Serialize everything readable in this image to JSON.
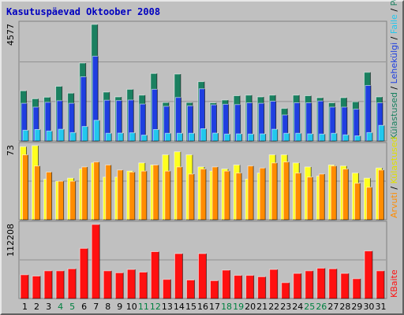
{
  "chart_data": {
    "type": "bar",
    "title": "Kasutuspäevad Oktoober 2008",
    "days": [
      "1",
      "2",
      "3",
      "4",
      "5",
      "6",
      "7",
      "8",
      "9",
      "10",
      "11",
      "12",
      "13",
      "14",
      "15",
      "16",
      "17",
      "18",
      "19",
      "20",
      "21",
      "22",
      "23",
      "24",
      "25",
      "26",
      "27",
      "28",
      "29",
      "30",
      "31"
    ],
    "weekend_days": [
      "4",
      "5",
      "11",
      "12",
      "18",
      "19",
      "25",
      "26"
    ],
    "panels": [
      {
        "id": "top",
        "ymax_label": "4577",
        "ylim": [
          0,
          4577
        ],
        "series": [
          {
            "name": "Külastused",
            "color": "#1a8060",
            "values": [
              1970,
              1660,
              1720,
              2150,
              1880,
              3060,
              4577,
              1920,
              1730,
              2030,
              1800,
              2650,
              1510,
              2630,
              1510,
              2330,
              1500,
              1610,
              1780,
              1800,
              1730,
              1800,
              1280,
              1800,
              1780,
              1700,
              1500,
              1700,
              1540,
              2700,
              1730
            ]
          },
          {
            "name": "Lehekülgi",
            "color": "#1f3fe0",
            "values": [
              1480,
              1330,
              1520,
              1580,
              1480,
              2520,
              3330,
              1600,
              1590,
              1610,
              1450,
              2030,
              1360,
              1710,
              1380,
              2050,
              1420,
              1440,
              1430,
              1500,
              1480,
              1560,
              1020,
              1500,
              1500,
              1570,
              1330,
              1330,
              1250,
              2180,
              1500
            ]
          },
          {
            "name": "Failid",
            "color": "#22c8ee",
            "values": [
              420,
              450,
              390,
              460,
              330,
              570,
              810,
              300,
              310,
              320,
              230,
              450,
              300,
              300,
              300,
              480,
              310,
              270,
              280,
              270,
              280,
              460,
              300,
              300,
              280,
              270,
              300,
              240,
              200,
              330,
              610
            ]
          }
        ]
      },
      {
        "id": "mid",
        "ymax_label": "73",
        "ylim": [
          0,
          73
        ],
        "series": [
          {
            "name": "Külastused/päev",
            "color": "#ffff20",
            "values": [
              72,
              73,
              40,
              38,
              41,
              50,
              56,
              42,
              42,
              48,
              56,
              54,
              64,
              67,
              64,
              52,
              48,
              50,
              54,
              40,
              46,
              64,
              64,
              56,
              52,
              43,
              54,
              53,
              46,
              41,
              51
            ]
          },
          {
            "name": "Pöördumisi",
            "color": "#ff8c00",
            "values": [
              64,
              53,
              47,
              38,
              38,
              52,
              57,
              54,
              49,
              47,
              48,
              54,
              48,
              52,
              45,
              50,
              52,
              48,
              46,
              53,
              51,
              56,
              57,
              46,
              42,
              45,
              53,
              50,
              36,
              32,
              49
            ]
          }
        ]
      },
      {
        "id": "bot",
        "ymax_label": "112208",
        "ylim": [
          0,
          112208
        ],
        "series": [
          {
            "name": "KBaite",
            "color": "#ff1010",
            "values": [
              36000,
              34000,
              42000,
              42000,
              45000,
              76000,
              112208,
              42000,
              39000,
              44000,
              40000,
              71000,
              29000,
              68000,
              28000,
              68000,
              27000,
              43000,
              35000,
              35000,
              33000,
              44000,
              24000,
              38000,
              42000,
              46000,
              45000,
              38000,
              30000,
              72000,
              42000
            ]
          }
        ]
      }
    ],
    "right_labels": {
      "top": [
        "Külastused",
        "Lehekülgi",
        "Faile",
        "Pöördumisi"
      ],
      "top_colors": [
        "#1a8060",
        "#1f3fe0",
        "#22c8ee",
        "#1a8060"
      ],
      "mid": [
        "Arvuti",
        "Külastused"
      ],
      "mid_colors": [
        "#ff8c00",
        "#e0e000"
      ],
      "bot": [
        "KBaite"
      ],
      "bot_colors": [
        "#ff1010"
      ]
    },
    "grid": true,
    "colors": {
      "background": "#c0c0c0",
      "title": "#0000c0",
      "weekend_label": "#008040",
      "weekday_label": "#000000"
    }
  }
}
